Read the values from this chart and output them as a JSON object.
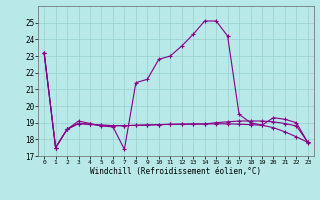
{
  "xlabel": "Windchill (Refroidissement éolien,°C)",
  "bg_color": "#b8e8e8",
  "line_color": "#880088",
  "grid_color": "#98d0d0",
  "curve1_x": [
    0,
    1,
    2,
    3,
    4,
    5,
    6,
    7,
    8,
    9,
    10,
    11,
    12,
    13,
    14,
    15,
    16,
    17,
    18,
    19,
    20,
    21,
    22,
    23
  ],
  "curve1_y": [
    23.2,
    17.5,
    18.6,
    19.1,
    18.95,
    18.8,
    18.75,
    17.4,
    21.4,
    21.6,
    22.8,
    23.0,
    23.6,
    24.3,
    25.1,
    25.1,
    24.2,
    19.5,
    19.0,
    18.85,
    19.3,
    19.2,
    19.0,
    17.8
  ],
  "curve2_x": [
    0,
    1,
    2,
    3,
    4,
    5,
    6,
    7,
    8,
    9,
    10,
    11,
    12,
    13,
    14,
    15,
    16,
    17,
    18,
    19,
    20,
    21,
    22,
    23
  ],
  "curve2_y": [
    23.2,
    17.5,
    18.6,
    18.95,
    18.9,
    18.85,
    18.82,
    18.82,
    18.84,
    18.86,
    18.88,
    18.9,
    18.91,
    18.92,
    18.92,
    18.93,
    18.93,
    18.91,
    18.88,
    18.85,
    18.7,
    18.45,
    18.15,
    17.82
  ],
  "curve3_x": [
    0,
    1,
    2,
    3,
    4,
    5,
    6,
    7,
    8,
    9,
    10,
    11,
    12,
    13,
    14,
    15,
    16,
    17,
    18,
    19,
    20,
    21,
    22,
    23
  ],
  "curve3_y": [
    23.2,
    17.5,
    18.6,
    18.95,
    18.9,
    18.85,
    18.82,
    18.82,
    18.84,
    18.86,
    18.88,
    18.9,
    18.91,
    18.92,
    18.92,
    19.0,
    19.05,
    19.1,
    19.1,
    19.1,
    19.05,
    18.95,
    18.8,
    17.82
  ],
  "ylim": [
    17,
    26
  ],
  "yticks": [
    17,
    18,
    19,
    20,
    21,
    22,
    23,
    24,
    25
  ],
  "xticks": [
    0,
    1,
    2,
    3,
    4,
    5,
    6,
    7,
    8,
    9,
    10,
    11,
    12,
    13,
    14,
    15,
    16,
    17,
    18,
    19,
    20,
    21,
    22,
    23
  ]
}
